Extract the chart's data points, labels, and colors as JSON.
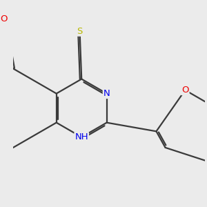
{
  "background_color": "#ebebeb",
  "bond_color": "#3a3a3a",
  "bond_width": 1.6,
  "dbo": 0.018,
  "atom_colors": {
    "N": "#0000ee",
    "O": "#ee0000",
    "S": "#b8b800",
    "C": "#3a3a3a"
  },
  "font_size": 9.5
}
